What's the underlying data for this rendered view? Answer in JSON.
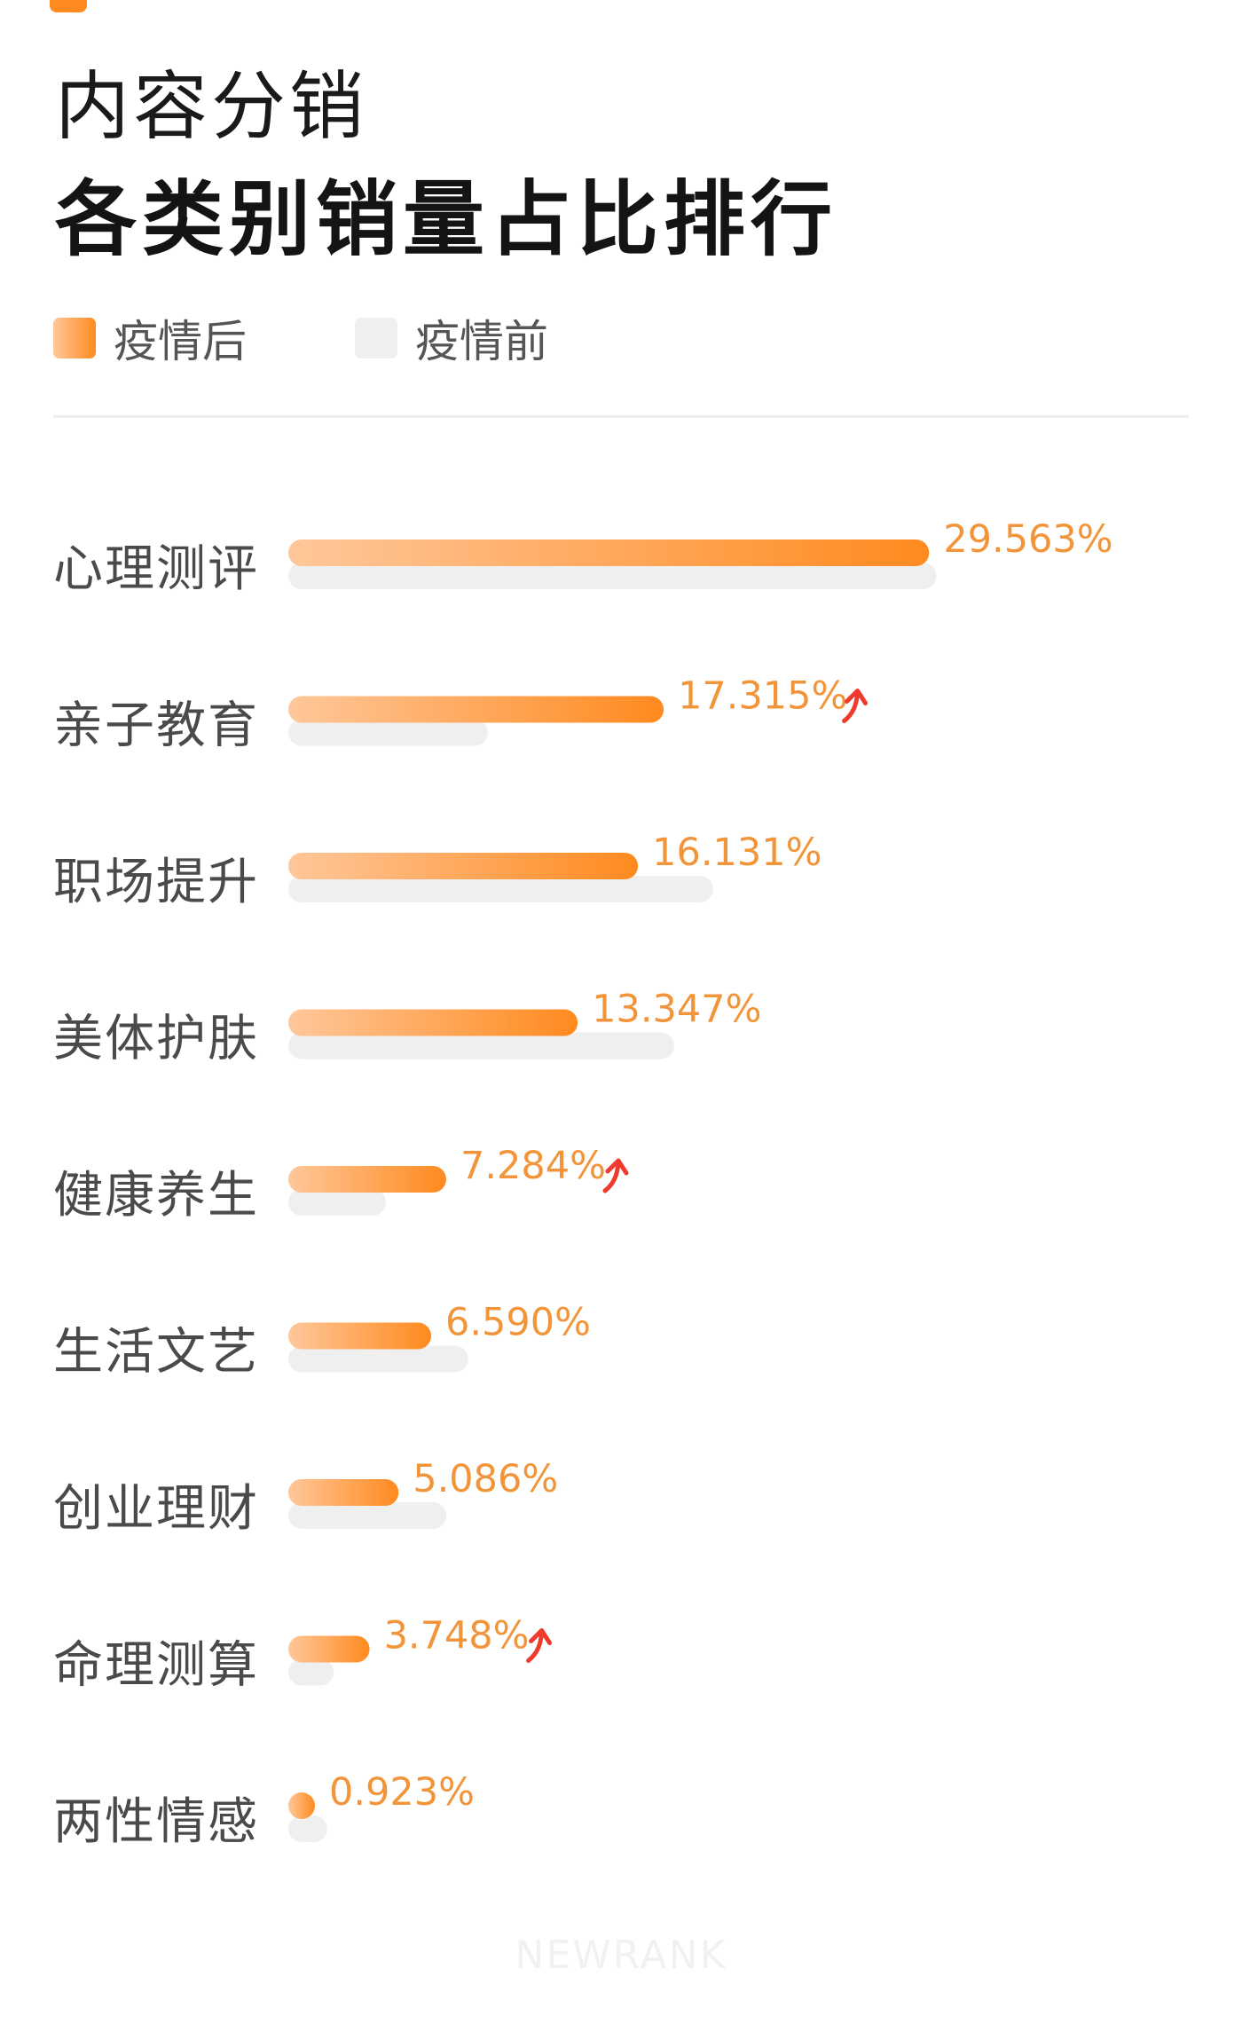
{
  "header": {
    "title_line1": "内容分销",
    "title_line2": "各类别销量占比排行"
  },
  "legend": {
    "after_label": "疫情后",
    "before_label": "疫情前"
  },
  "watermark": "NEWRANK",
  "colors": {
    "after_start": "#ffc79a",
    "after_end": "#ff8a1f",
    "before": "#efefef",
    "value_label": "#f2953a",
    "trend_up": "#f03a2e"
  },
  "chart_data": {
    "type": "bar",
    "orientation": "horizontal",
    "categories": [
      "心理测评",
      "亲子教育",
      "职场提升",
      "美体护肤",
      "健康养生",
      "生活文艺",
      "创业理财",
      "命理测算",
      "两性情感"
    ],
    "series": [
      {
        "name": "疫情后",
        "values": [
          29.563,
          17.315,
          16.131,
          13.347,
          7.284,
          6.59,
          5.086,
          3.748,
          0.923
        ],
        "labels": [
          "29.563%",
          "17.315%",
          "16.131%",
          "13.347%",
          "7.284%",
          "6.590%",
          "5.086%",
          "3.748%",
          "0.923%"
        ],
        "trend_up": [
          false,
          true,
          false,
          false,
          true,
          false,
          false,
          true,
          false
        ]
      },
      {
        "name": "疫情前",
        "values": [
          29.9,
          9.2,
          19.6,
          17.8,
          4.5,
          8.3,
          7.3,
          2.1,
          1.8
        ]
      }
    ],
    "xlim": [
      0,
      30
    ],
    "legend_position": "top-left",
    "grid": false
  }
}
